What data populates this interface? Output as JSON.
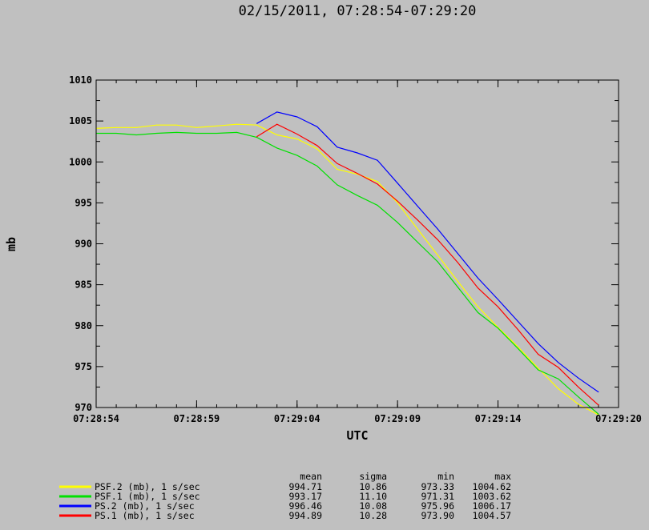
{
  "chart_data": {
    "type": "line",
    "title": "02/15/2011, 07:28:54-07:29:20",
    "xlabel": "UTC",
    "ylabel": "mb",
    "xlim": [
      "07:28:54",
      "07:29:20"
    ],
    "ylim": [
      970,
      1010
    ],
    "x_ticks": [
      "07:28:54",
      "07:28:59",
      "07:29:04",
      "07:29:09",
      "07:29:14",
      "07:29:20"
    ],
    "y_ticks": [
      "970",
      "975",
      "980",
      "985",
      "990",
      "995",
      "1000",
      "1005",
      "1010"
    ],
    "stats_headers": [
      "mean",
      "sigma",
      "min",
      "max"
    ],
    "series": [
      {
        "name": "PSF.2 (mb), 1 s/sec",
        "color": "#ffff00",
        "mean": "994.71",
        "sigma": "10.86",
        "min": "973.33",
        "max": "1004.62",
        "x": [
          "07:28:54",
          "07:28:55",
          "07:28:56",
          "07:28:57",
          "07:28:58",
          "07:28:59",
          "07:29:00",
          "07:29:01",
          "07:29:02",
          "07:29:03",
          "07:29:04",
          "07:29:05",
          "07:29:06",
          "07:29:07",
          "07:29:08",
          "07:29:09",
          "07:29:10",
          "07:29:11",
          "07:29:12",
          "07:29:13",
          "07:29:14",
          "07:29:15",
          "07:29:16",
          "07:29:17",
          "07:29:18",
          "07:29:19"
        ],
        "values": [
          1004.1,
          1004.2,
          1004.2,
          1004.5,
          1004.5,
          1004.2,
          1004.4,
          1004.6,
          1004.5,
          1003.3,
          1002.8,
          1001.6,
          999.1,
          998.5,
          997.6,
          995.0,
          991.8,
          988.6,
          985.4,
          982.3,
          979.8,
          977.4,
          974.8,
          972.3,
          970.4,
          969.1
        ]
      },
      {
        "name": "PSF.1 (mb), 1 s/sec",
        "color": "#00e000",
        "mean": "993.17",
        "sigma": "11.10",
        "min": "971.31",
        "max": "1003.62",
        "x": [
          "07:28:54",
          "07:28:55",
          "07:28:56",
          "07:28:57",
          "07:28:58",
          "07:28:59",
          "07:29:00",
          "07:29:01",
          "07:29:02",
          "07:29:03",
          "07:29:04",
          "07:29:05",
          "07:29:06",
          "07:29:07",
          "07:29:08",
          "07:29:09",
          "07:29:10",
          "07:29:11",
          "07:29:12",
          "07:29:13",
          "07:29:14",
          "07:29:15",
          "07:29:16",
          "07:29:17",
          "07:29:18",
          "07:29:19"
        ],
        "values": [
          1003.5,
          1003.5,
          1003.3,
          1003.5,
          1003.6,
          1003.5,
          1003.5,
          1003.6,
          1003.0,
          1001.7,
          1000.8,
          999.5,
          997.2,
          995.9,
          994.7,
          992.6,
          990.2,
          987.8,
          984.7,
          981.6,
          979.7,
          977.2,
          974.6,
          973.5,
          971.3,
          969.2
        ]
      },
      {
        "name": "PS.2 (mb), 1 s/sec",
        "color": "#0000ff",
        "mean": "996.46",
        "sigma": "10.08",
        "min": "975.96",
        "max": "1006.17",
        "x": [
          "07:29:02",
          "07:29:03",
          "07:29:04",
          "07:29:05",
          "07:29:06",
          "07:29:07",
          "07:29:08",
          "07:29:09",
          "07:29:10",
          "07:29:11",
          "07:29:12",
          "07:29:13",
          "07:29:14",
          "07:29:15",
          "07:29:16",
          "07:29:17",
          "07:29:18",
          "07:29:19"
        ],
        "values": [
          1004.7,
          1006.1,
          1005.5,
          1004.3,
          1001.8,
          1001.1,
          1000.2,
          997.4,
          994.6,
          991.8,
          988.8,
          985.8,
          983.2,
          980.5,
          977.8,
          975.5,
          973.6,
          971.9
        ]
      },
      {
        "name": "PS.1 (mb), 1 s/sec",
        "color": "#ff0000",
        "mean": "994.89",
        "sigma": "10.28",
        "min": "973.90",
        "max": "1004.57",
        "x": [
          "07:29:02",
          "07:29:03",
          "07:29:04",
          "07:29:05",
          "07:29:06",
          "07:29:07",
          "07:29:08",
          "07:29:09",
          "07:29:10",
          "07:29:11",
          "07:29:12",
          "07:29:13",
          "07:29:14",
          "07:29:15",
          "07:29:16",
          "07:29:17",
          "07:29:18",
          "07:29:19"
        ],
        "values": [
          1003.1,
          1004.6,
          1003.4,
          1002.0,
          999.8,
          998.6,
          997.3,
          995.2,
          992.9,
          990.5,
          987.7,
          984.6,
          982.3,
          979.5,
          976.5,
          974.9,
          972.5,
          970.3
        ]
      }
    ]
  }
}
